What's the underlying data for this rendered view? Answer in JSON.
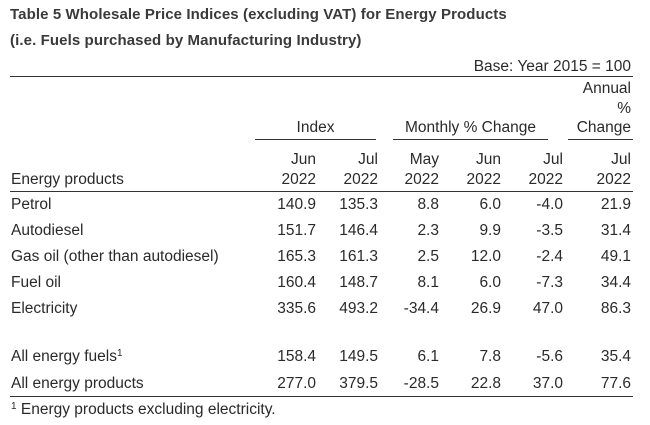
{
  "title_line1": "Table 5 Wholesale Price Indices (excluding VAT) for Energy Products",
  "title_line2": "(i.e. Fuels purchased by Manufacturing Industry)",
  "base_note": "Base: Year 2015 = 100",
  "group_headers": {
    "index": "Index",
    "monthly": "Monthly % Change",
    "annual_1": "Annual",
    "annual_2": "%",
    "annual_3": "Change"
  },
  "row_header": "Energy products",
  "columns": [
    {
      "month": "Jun",
      "year": "2022"
    },
    {
      "month": "Jul",
      "year": "2022"
    },
    {
      "month": "May",
      "year": "2022"
    },
    {
      "month": "Jun",
      "year": "2022"
    },
    {
      "month": "Jul",
      "year": "2022"
    },
    {
      "month": "Jul",
      "year": "2022"
    }
  ],
  "rows": [
    {
      "label": "Petrol",
      "values": [
        "140.9",
        "135.3",
        "8.8",
        "6.0",
        "-4.0",
        "21.9"
      ]
    },
    {
      "label": "Autodiesel",
      "values": [
        "151.7",
        "146.4",
        "2.3",
        "9.9",
        "-3.5",
        "31.4"
      ]
    },
    {
      "label": "Gas oil (other than autodiesel)",
      "values": [
        "165.3",
        "161.3",
        "2.5",
        "12.0",
        "-2.4",
        "49.1"
      ]
    },
    {
      "label": "Fuel oil",
      "values": [
        "160.4",
        "148.7",
        "8.1",
        "6.0",
        "-7.3",
        "34.4"
      ]
    },
    {
      "label": "Electricity",
      "values": [
        "335.6",
        "493.2",
        "-34.4",
        "26.9",
        "47.0",
        "86.3"
      ]
    },
    {
      "label": "All energy fuels",
      "sup": "1",
      "values": [
        "158.4",
        "149.5",
        "6.1",
        "7.8",
        "-5.6",
        "35.4"
      ]
    },
    {
      "label": "All energy products",
      "values": [
        "277.0",
        "379.5",
        "-28.5",
        "22.8",
        "37.0",
        "77.6"
      ]
    }
  ],
  "footnote": {
    "marker": "1",
    "text": "Energy products excluding electricity."
  }
}
